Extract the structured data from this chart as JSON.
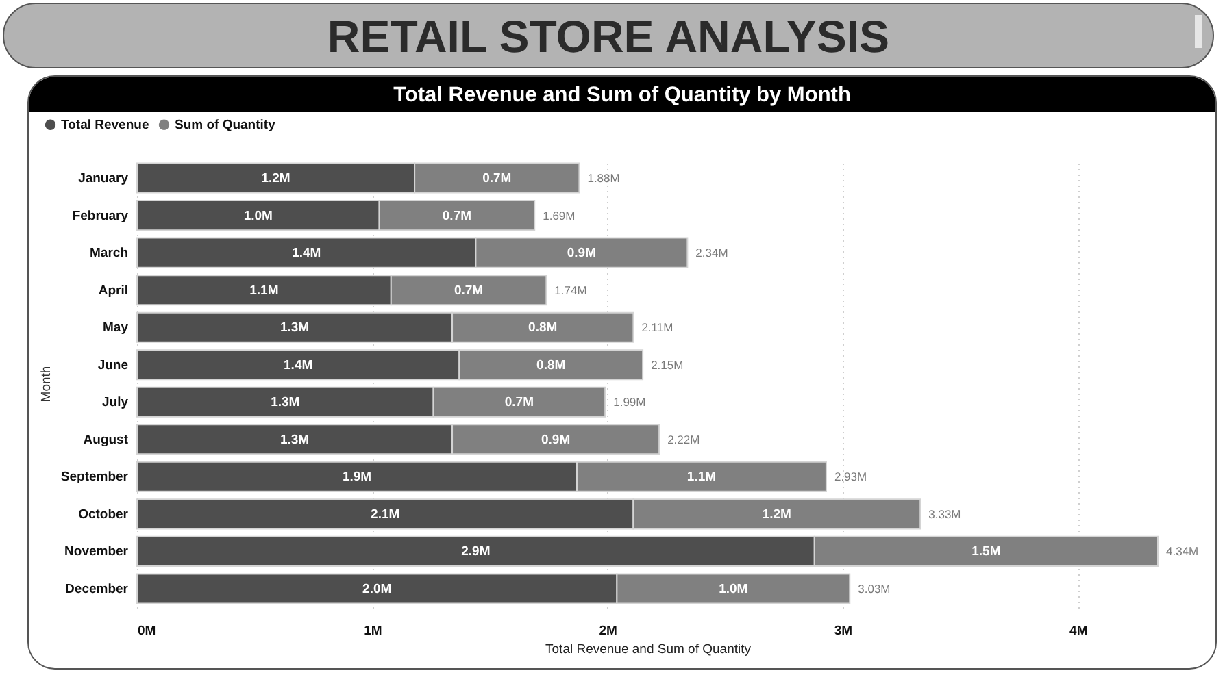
{
  "chart_data": {
    "type": "bar",
    "orientation": "horizontal",
    "stacked": true,
    "title": "RETAIL STORE ANALYSIS",
    "subtitle": "Total Revenue and Sum of Quantity by Month",
    "xlabel": "Total Revenue and Sum of Quantity",
    "ylabel": "Month",
    "categories": [
      "January",
      "February",
      "March",
      "April",
      "May",
      "June",
      "July",
      "August",
      "September",
      "October",
      "November",
      "December"
    ],
    "series": [
      {
        "name": "Total Revenue",
        "color": "#4e4e4e",
        "values": [
          1.18,
          1.03,
          1.44,
          1.08,
          1.34,
          1.37,
          1.26,
          1.34,
          1.87,
          2.11,
          2.88,
          2.04
        ],
        "value_labels": [
          "1.2M",
          "1.0M",
          "1.4M",
          "1.1M",
          "1.3M",
          "1.4M",
          "1.3M",
          "1.3M",
          "1.9M",
          "2.1M",
          "2.9M",
          "2.0M"
        ]
      },
      {
        "name": "Sum of Quantity",
        "color": "#808080",
        "values": [
          0.7,
          0.66,
          0.9,
          0.66,
          0.77,
          0.78,
          0.73,
          0.88,
          1.06,
          1.22,
          1.46,
          0.99
        ],
        "value_labels": [
          "0.7M",
          "0.7M",
          "0.9M",
          "0.7M",
          "0.8M",
          "0.8M",
          "0.7M",
          "0.9M",
          "1.1M",
          "1.2M",
          "1.5M",
          "1.0M"
        ]
      }
    ],
    "totals": [
      "1.88M",
      "1.69M",
      "2.34M",
      "1.74M",
      "2.11M",
      "2.15M",
      "1.99M",
      "2.22M",
      "2.93M",
      "3.33M",
      "4.34M",
      "3.03M"
    ],
    "xlim": [
      0,
      4.34
    ],
    "xticks": [
      {
        "value": 0,
        "label": "0M"
      },
      {
        "value": 1,
        "label": "1M"
      },
      {
        "value": 2,
        "label": "2M"
      },
      {
        "value": 3,
        "label": "3M"
      },
      {
        "value": 4,
        "label": "4M"
      }
    ],
    "grid": "x",
    "legend": "top left"
  }
}
